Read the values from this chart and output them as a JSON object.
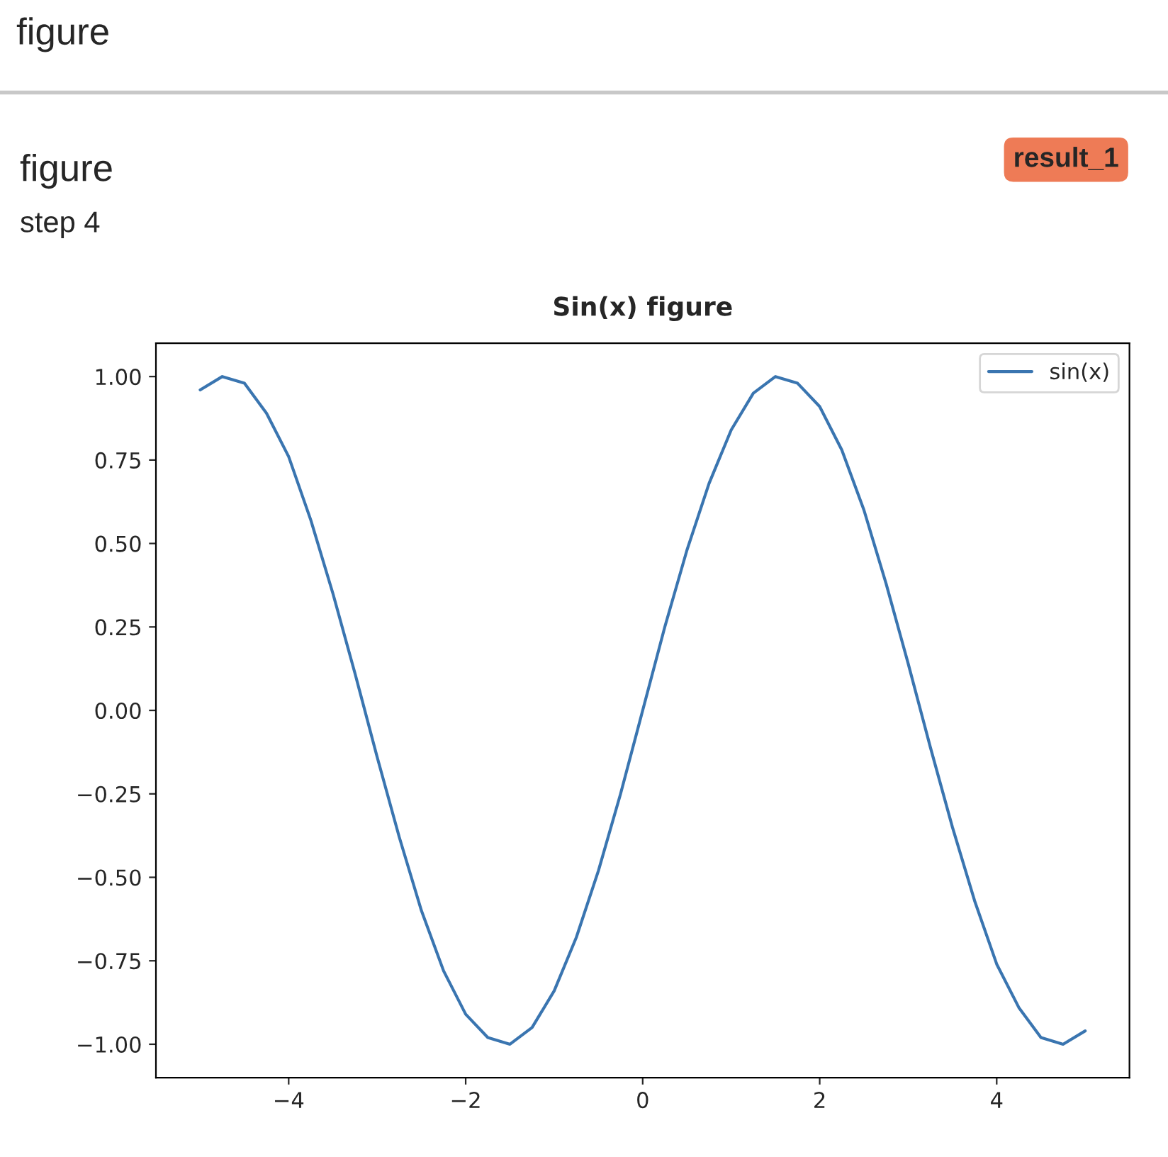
{
  "chart_data": {
    "type": "line",
    "title": "Sin(x) figure",
    "annotations": [
      "figure",
      "figure",
      "step 4",
      "result_1"
    ],
    "x": [
      -5,
      -4.75,
      -4.5,
      -4.25,
      -4,
      -3.75,
      -3.5,
      -3.25,
      -3,
      -2.75,
      -2.5,
      -2.25,
      -2,
      -1.75,
      -1.5,
      -1.25,
      -1,
      -0.75,
      -0.5,
      -0.25,
      0,
      0.25,
      0.5,
      0.75,
      1,
      1.25,
      1.5,
      1.75,
      2,
      2.25,
      2.5,
      2.75,
      3,
      3.25,
      3.5,
      3.75,
      4,
      4.25,
      4.5,
      4.75,
      5
    ],
    "series": [
      {
        "name": "sin(x)",
        "color": "#3a75b0",
        "values": [
          0.96,
          1.0,
          0.98,
          0.89,
          0.76,
          0.57,
          0.35,
          0.11,
          -0.14,
          -0.38,
          -0.6,
          -0.78,
          -0.91,
          -0.98,
          -1.0,
          -0.95,
          -0.84,
          -0.68,
          -0.48,
          -0.25,
          0,
          0.25,
          0.48,
          0.68,
          0.84,
          0.95,
          1.0,
          0.98,
          0.91,
          0.78,
          0.6,
          0.38,
          0.14,
          -0.11,
          -0.35,
          -0.57,
          -0.76,
          -0.89,
          -0.98,
          -1.0,
          -0.96
        ]
      }
    ],
    "xlim": [
      -5.5,
      5.5
    ],
    "ylim": [
      -1.1,
      1.1
    ],
    "xticks": [
      {
        "value": -4,
        "label": "−4"
      },
      {
        "value": -2,
        "label": "−2"
      },
      0,
      2,
      4
    ],
    "yticks": [
      {
        "value": -1,
        "label": "−1.00"
      },
      {
        "value": -0.75,
        "label": "−0.75"
      },
      {
        "value": -0.5,
        "label": "−0.50"
      },
      {
        "value": -0.25,
        "label": "−0.25"
      },
      {
        "value": 0,
        "label": "0.00"
      },
      {
        "value": 0.25,
        "label": "0.25"
      },
      {
        "value": 0.5,
        "label": "0.50"
      },
      {
        "value": 0.75,
        "label": "0.75"
      },
      {
        "value": 1,
        "label": "1.00"
      }
    ],
    "legend": "top right",
    "grid": false
  }
}
